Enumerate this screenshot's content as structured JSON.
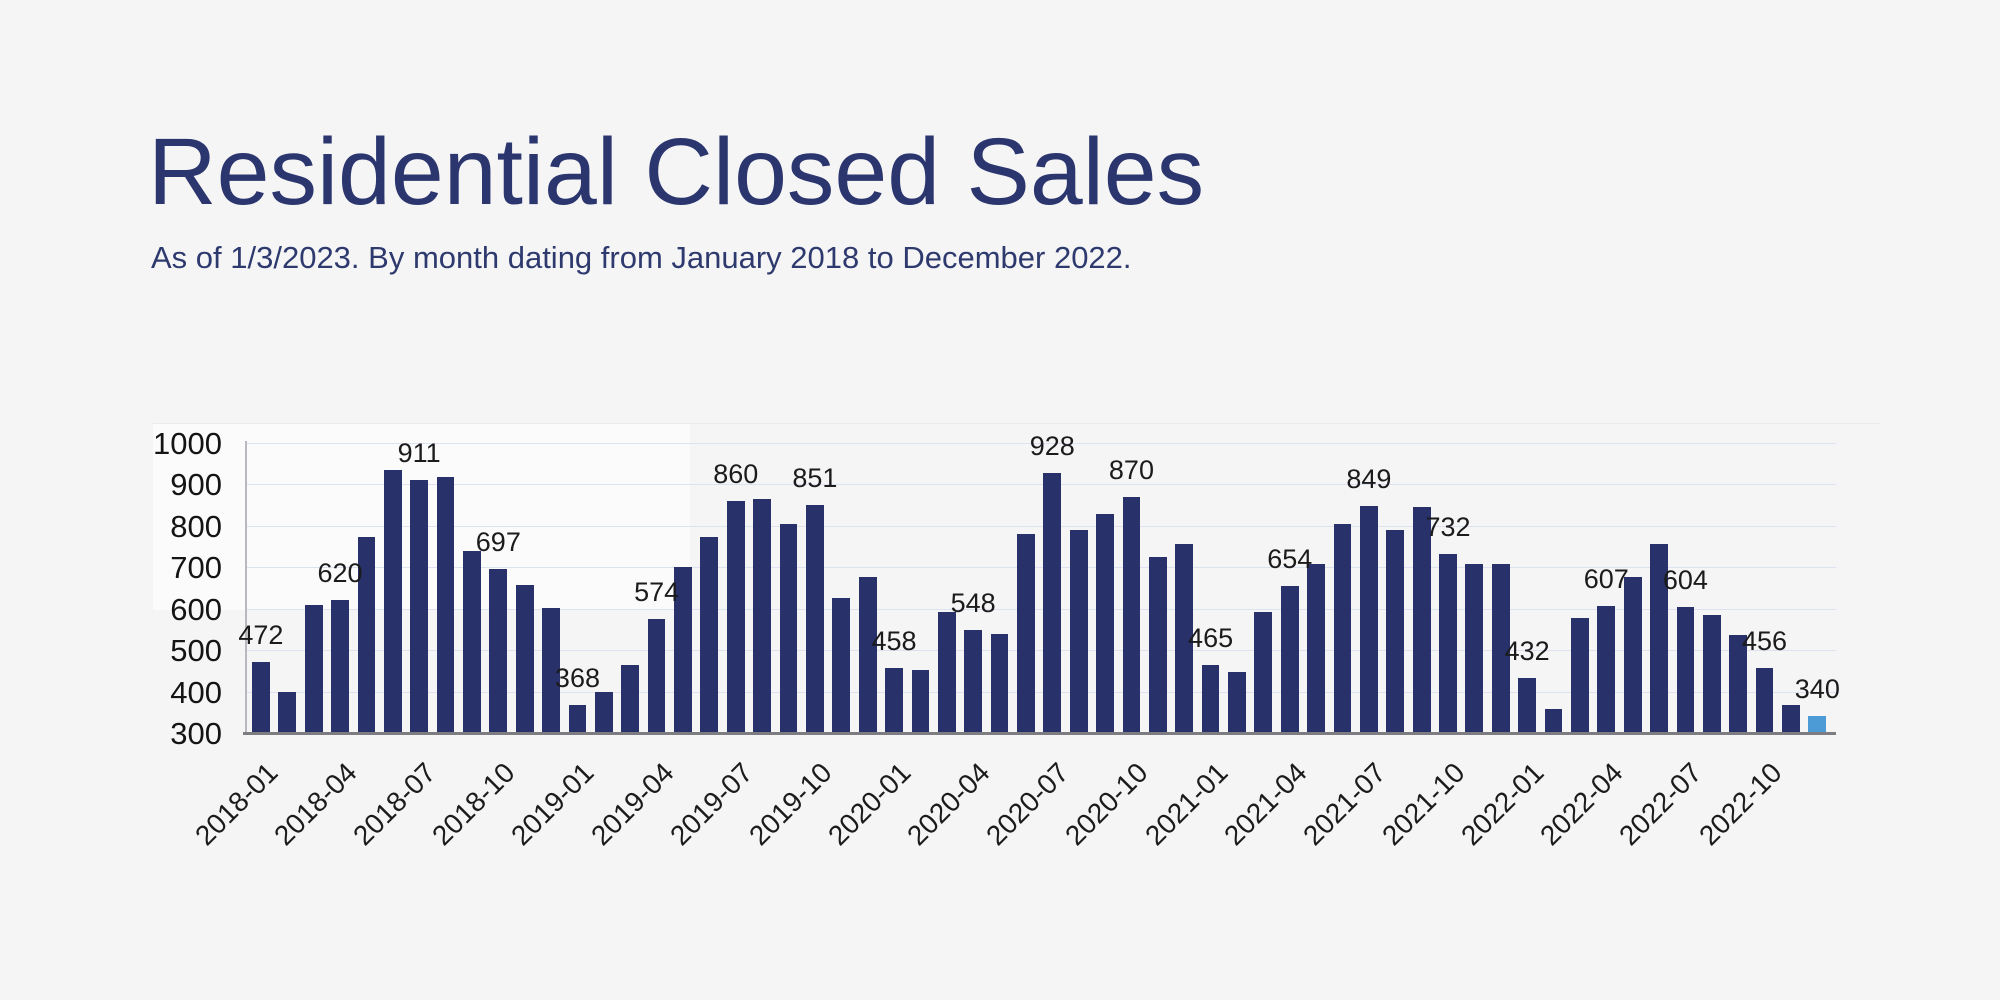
{
  "header": {
    "title": "Residential Closed Sales",
    "subtitle": "As of 1/3/2023. By month dating from January 2018 to December 2022."
  },
  "colors": {
    "background": "#f5f5f6",
    "title_text": "#2b356e",
    "bar": "#283169",
    "highlight_bar": "#4d9bd6",
    "gridline": "#dce2ef",
    "baseline": "#7d7d81",
    "axis_text": "#141414"
  },
  "chart_data": {
    "type": "bar",
    "title": "Residential Closed Sales",
    "xlabel": "",
    "ylabel": "",
    "ylim": [
      300,
      1000
    ],
    "yticks": [
      300,
      400,
      500,
      600,
      700,
      800,
      900,
      1000
    ],
    "grid": true,
    "xtick_every": 3,
    "value_label_every": 3,
    "value_label_last_bar": true,
    "highlight_index": 59,
    "categories": [
      "2018-01",
      "2018-02",
      "2018-03",
      "2018-04",
      "2018-05",
      "2018-06",
      "2018-07",
      "2018-08",
      "2018-09",
      "2018-10",
      "2018-11",
      "2018-12",
      "2019-01",
      "2019-02",
      "2019-03",
      "2019-04",
      "2019-05",
      "2019-06",
      "2019-07",
      "2019-08",
      "2019-09",
      "2019-10",
      "2019-11",
      "2019-12",
      "2020-01",
      "2020-02",
      "2020-03",
      "2020-04",
      "2020-05",
      "2020-06",
      "2020-07",
      "2020-08",
      "2020-09",
      "2020-10",
      "2020-11",
      "2020-12",
      "2021-01",
      "2021-02",
      "2021-03",
      "2021-04",
      "2021-05",
      "2021-06",
      "2021-07",
      "2021-08",
      "2021-09",
      "2021-10",
      "2021-11",
      "2021-12",
      "2022-01",
      "2022-02",
      "2022-03",
      "2022-04",
      "2022-05",
      "2022-06",
      "2022-07",
      "2022-08",
      "2022-09",
      "2022-10",
      "2022-11",
      "2022-12"
    ],
    "values": [
      472,
      400,
      610,
      620,
      772,
      935,
      911,
      918,
      740,
      697,
      658,
      602,
      368,
      400,
      463,
      574,
      700,
      772,
      860,
      866,
      805,
      851,
      626,
      676,
      458,
      451,
      593,
      548,
      539,
      780,
      928,
      790,
      829,
      870,
      725,
      757,
      465,
      447,
      593,
      654,
      707,
      805,
      849,
      789,
      846,
      732,
      708,
      708,
      432,
      358,
      577,
      607,
      676,
      756,
      604,
      585,
      537,
      456,
      367,
      340
    ],
    "visible_value_labels": [
      472,
      620,
      911,
      697,
      368,
      574,
      860,
      851,
      458,
      548,
      928,
      870,
      465,
      654,
      849,
      732,
      432,
      607,
      604,
      456,
      340
    ],
    "visible_xtick_labels": [
      "2018-01",
      "2018-04",
      "2018-07",
      "2018-10",
      "2019-01",
      "2019-04",
      "2019-07",
      "2019-10",
      "2020-01",
      "2020-04",
      "2020-07",
      "2020-10",
      "2021-01",
      "2021-04",
      "2021-07",
      "2021-10",
      "2022-01",
      "2022-04",
      "2022-07",
      "2022-10"
    ]
  }
}
